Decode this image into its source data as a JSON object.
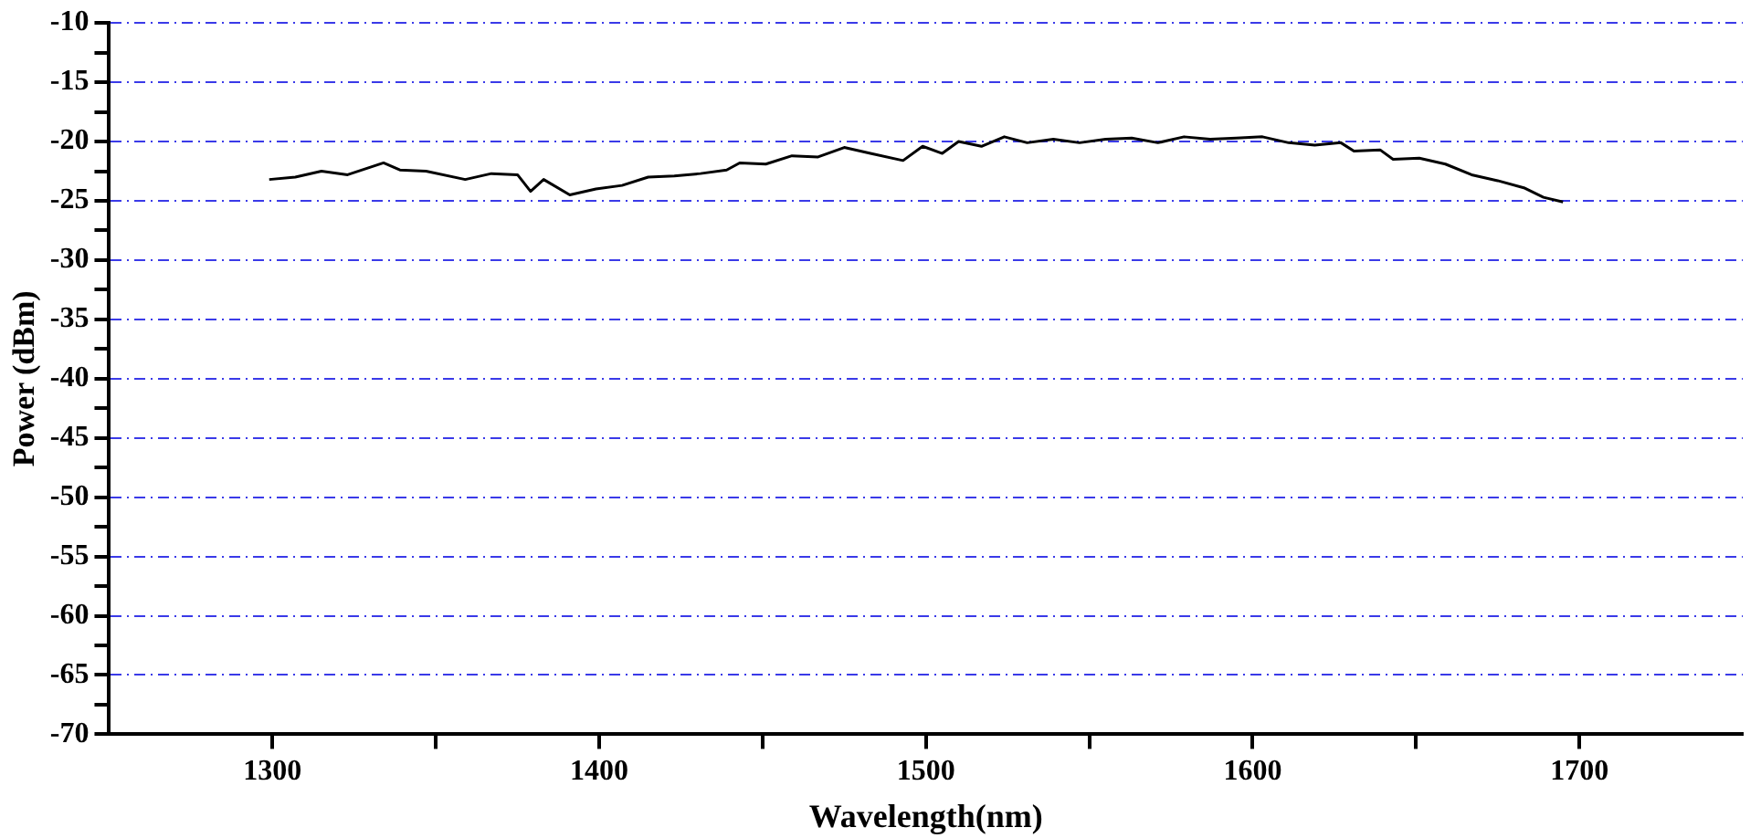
{
  "chart_data": {
    "type": "line",
    "xlabel": "Wavelength(nm)",
    "ylabel": "Power (dBm)",
    "xlim": [
      1250,
      1750
    ],
    "xticks": [
      1300,
      {
        "value": 1350,
        "label": null
      },
      1400,
      {
        "value": 1450,
        "label": null
      },
      1500,
      {
        "value": 1550,
        "label": null
      },
      1600,
      {
        "value": 1650,
        "label": null
      },
      1700
    ],
    "ylim": [
      -70,
      -10
    ],
    "yticks": [
      -70,
      {
        "value": -67.5,
        "label": null
      },
      -65,
      {
        "value": -62.5,
        "label": null
      },
      -60,
      {
        "value": -57.5,
        "label": null
      },
      -55,
      {
        "value": -52.5,
        "label": null
      },
      -50,
      {
        "value": -47.5,
        "label": null
      },
      -45,
      {
        "value": -42.5,
        "label": null
      },
      -40,
      {
        "value": -37.5,
        "label": null
      },
      -35,
      {
        "value": -32.5,
        "label": null
      },
      -30,
      {
        "value": -27.5,
        "label": null
      },
      -25,
      {
        "value": -22.5,
        "label": null
      },
      -20,
      {
        "value": -17.5,
        "label": null
      },
      -15,
      {
        "value": -12.5,
        "label": null
      },
      -10
    ],
    "grid": "y",
    "legend": false,
    "marker": "none",
    "line_style": "solid",
    "series": [
      {
        "color": "#000000",
        "x": [
          1299,
          1307,
          1315,
          1323,
          1334,
          1339,
          1347,
          1359,
          1367,
          1375,
          1379,
          1383,
          1391,
          1399,
          1407,
          1415,
          1423,
          1431,
          1439,
          1443,
          1451,
          1459,
          1467,
          1475,
          1483,
          1493,
          1499,
          1505,
          1510,
          1517,
          1524,
          1531,
          1539,
          1547,
          1555,
          1563,
          1571,
          1579,
          1587,
          1595,
          1603,
          1611,
          1619,
          1627,
          1631,
          1639,
          1643,
          1651,
          1659,
          1667,
          1675,
          1683,
          1689,
          1695
        ],
        "values": [
          -23.2,
          -23.0,
          -22.5,
          -22.8,
          -21.8,
          -22.4,
          -22.5,
          -23.2,
          -22.7,
          -22.8,
          -24.2,
          -23.2,
          -24.5,
          -24.0,
          -23.7,
          -23.0,
          -22.9,
          -22.7,
          -22.4,
          -21.8,
          -21.9,
          -21.2,
          -21.3,
          -20.5,
          -21.0,
          -21.6,
          -20.4,
          -21.0,
          -20.0,
          -20.4,
          -19.6,
          -20.1,
          -19.8,
          -20.1,
          -19.8,
          -19.7,
          -20.1,
          -19.6,
          -19.8,
          -19.7,
          -19.6,
          -20.1,
          -20.3,
          -20.1,
          -20.8,
          -20.7,
          -21.5,
          -21.4,
          -21.9,
          -22.8,
          -23.3,
          -23.9,
          -24.7,
          -25.1
        ]
      }
    ]
  }
}
